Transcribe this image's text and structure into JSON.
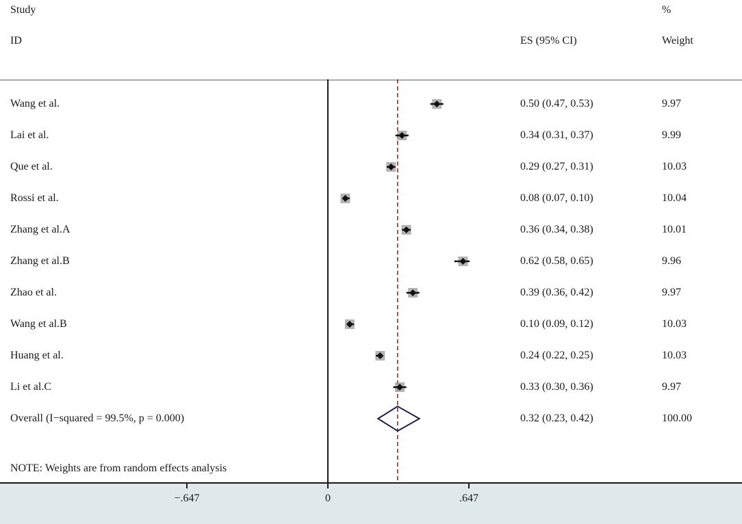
{
  "header": {
    "study": "Study",
    "id": "ID",
    "es": "ES (95% CI)",
    "pct": "%",
    "weight": "Weight"
  },
  "note": "NOTE: Weights are from random effects analysis",
  "colors": {
    "null_line": "#1a1a1a",
    "overall_line": "#8b1a1a",
    "marker": "#111111",
    "weight_box": "#9a9a9a",
    "diamond": "#1f1f4a",
    "axis_band": "#dfe8ea"
  },
  "chart_data": {
    "type": "forest",
    "x_ticks": [
      {
        "value": -0.647,
        "label": "−.647"
      },
      {
        "value": 0,
        "label": "0"
      },
      {
        "value": 0.647,
        "label": ".647"
      }
    ],
    "null_line": 0,
    "overall_line": 0.32,
    "studies": [
      {
        "id": "Wang et al.",
        "es": 0.5,
        "lo": 0.47,
        "hi": 0.53,
        "es_ci": "0.50 (0.47, 0.53)",
        "weight": "9.97"
      },
      {
        "id": "Lai et al.",
        "es": 0.34,
        "lo": 0.31,
        "hi": 0.37,
        "es_ci": "0.34 (0.31, 0.37)",
        "weight": "9.99"
      },
      {
        "id": "Que et al.",
        "es": 0.29,
        "lo": 0.27,
        "hi": 0.31,
        "es_ci": "0.29 (0.27, 0.31)",
        "weight": "10.03"
      },
      {
        "id": "Rossi et al.",
        "es": 0.08,
        "lo": 0.07,
        "hi": 0.1,
        "es_ci": "0.08 (0.07, 0.10)",
        "weight": "10.04"
      },
      {
        "id": "Zhang et al.A",
        "es": 0.36,
        "lo": 0.34,
        "hi": 0.38,
        "es_ci": "0.36 (0.34, 0.38)",
        "weight": "10.01"
      },
      {
        "id": "Zhang et al.B",
        "es": 0.62,
        "lo": 0.58,
        "hi": 0.65,
        "es_ci": "0.62 (0.58, 0.65)",
        "weight": "9.96"
      },
      {
        "id": "Zhao et al.",
        "es": 0.39,
        "lo": 0.36,
        "hi": 0.42,
        "es_ci": "0.39 (0.36, 0.42)",
        "weight": "9.97"
      },
      {
        "id": "Wang et al.B",
        "es": 0.1,
        "lo": 0.09,
        "hi": 0.12,
        "es_ci": "0.10 (0.09, 0.12)",
        "weight": "10.03"
      },
      {
        "id": "Huang et al.",
        "es": 0.24,
        "lo": 0.22,
        "hi": 0.25,
        "es_ci": "0.24 (0.22, 0.25)",
        "weight": "10.03"
      },
      {
        "id": "Li et al.C",
        "es": 0.33,
        "lo": 0.3,
        "hi": 0.36,
        "es_ci": "0.33 (0.30, 0.36)",
        "weight": "9.97"
      }
    ],
    "overall": {
      "label": "Overall  (I−squared = 99.5%, p = 0.000)",
      "es": 0.32,
      "lo": 0.23,
      "hi": 0.42,
      "es_ci": "0.32 (0.23, 0.42)",
      "weight": "100.00"
    }
  }
}
